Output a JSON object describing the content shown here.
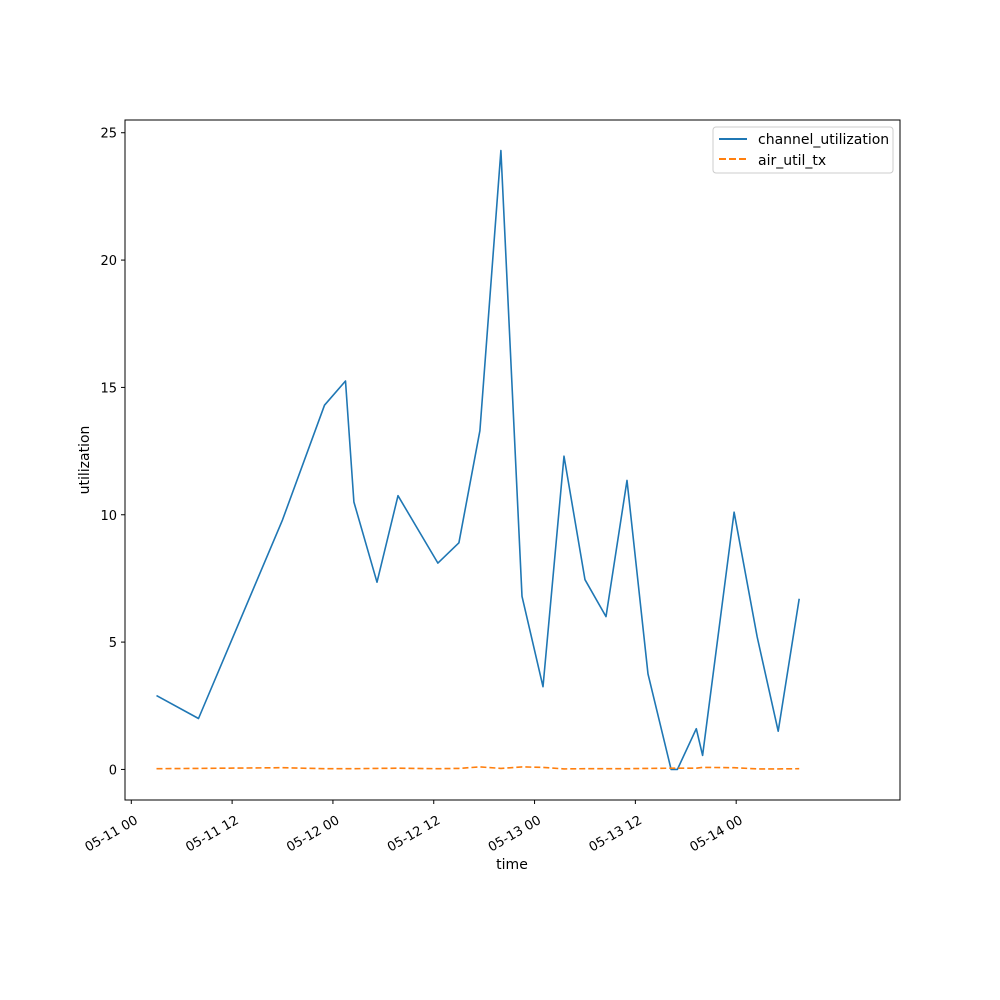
{
  "chart_data": {
    "type": "line",
    "xlabel": "time",
    "ylabel": "utilization",
    "x_ticks": [
      {
        "x": "2024-05-11T00:00",
        "label": "05-11 00"
      },
      {
        "x": "2024-05-11T12:00",
        "label": "05-11 12"
      },
      {
        "x": "2024-05-12T00:00",
        "label": "05-12 00"
      },
      {
        "x": "2024-05-12T12:00",
        "label": "05-12 12"
      },
      {
        "x": "2024-05-13T00:00",
        "label": "05-13 00"
      },
      {
        "x": "2024-05-13T12:00",
        "label": "05-13 12"
      },
      {
        "x": "2024-05-14T00:00",
        "label": "05-14 00"
      }
    ],
    "y_ticks": [
      0,
      5,
      10,
      15,
      20,
      25
    ],
    "xlim": [
      "2024-05-10T23:15",
      "2024-05-14T19:30"
    ],
    "ylim": [
      -1.2,
      25.5
    ],
    "grid": false,
    "legend_position": "top-right",
    "series": [
      {
        "name": "channel_utilization",
        "color": "#1f77b4",
        "dash": "solid",
        "points": [
          {
            "x": "2024-05-11T03:00",
            "y": 2.9
          },
          {
            "x": "2024-05-11T08:00",
            "y": 2.0
          },
          {
            "x": "2024-05-11T18:00",
            "y": 9.8
          },
          {
            "x": "2024-05-11T23:00",
            "y": 14.3
          },
          {
            "x": "2024-05-12T01:30",
            "y": 15.25
          },
          {
            "x": "2024-05-12T02:30",
            "y": 10.5
          },
          {
            "x": "2024-05-12T05:15",
            "y": 7.35
          },
          {
            "x": "2024-05-12T07:45",
            "y": 10.75
          },
          {
            "x": "2024-05-12T12:30",
            "y": 8.1
          },
          {
            "x": "2024-05-12T15:00",
            "y": 8.9
          },
          {
            "x": "2024-05-12T17:30",
            "y": 13.3
          },
          {
            "x": "2024-05-12T20:00",
            "y": 24.3
          },
          {
            "x": "2024-05-12T22:30",
            "y": 6.8
          },
          {
            "x": "2024-05-13T01:00",
            "y": 3.25
          },
          {
            "x": "2024-05-13T03:30",
            "y": 12.3
          },
          {
            "x": "2024-05-13T06:00",
            "y": 7.45
          },
          {
            "x": "2024-05-13T08:30",
            "y": 6.0
          },
          {
            "x": "2024-05-13T11:00",
            "y": 11.35
          },
          {
            "x": "2024-05-13T13:30",
            "y": 3.75
          },
          {
            "x": "2024-05-13T16:15",
            "y": 0.0
          },
          {
            "x": "2024-05-13T17:00",
            "y": 0.0
          },
          {
            "x": "2024-05-13T19:15",
            "y": 1.6
          },
          {
            "x": "2024-05-13T20:00",
            "y": 0.55
          },
          {
            "x": "2024-05-13T23:45",
            "y": 10.1
          },
          {
            "x": "2024-05-14T02:30",
            "y": 5.2
          },
          {
            "x": "2024-05-14T05:00",
            "y": 1.5
          },
          {
            "x": "2024-05-14T07:30",
            "y": 6.7
          }
        ]
      },
      {
        "name": "air_util_tx",
        "color": "#ff7f0e",
        "dash": "dashed",
        "points": [
          {
            "x": "2024-05-11T03:00",
            "y": 0.03
          },
          {
            "x": "2024-05-11T08:00",
            "y": 0.04
          },
          {
            "x": "2024-05-11T18:00",
            "y": 0.07
          },
          {
            "x": "2024-05-11T23:00",
            "y": 0.03
          },
          {
            "x": "2024-05-12T01:30",
            "y": 0.03
          },
          {
            "x": "2024-05-12T02:30",
            "y": 0.03
          },
          {
            "x": "2024-05-12T05:15",
            "y": 0.04
          },
          {
            "x": "2024-05-12T07:45",
            "y": 0.05
          },
          {
            "x": "2024-05-12T12:30",
            "y": 0.03
          },
          {
            "x": "2024-05-12T15:00",
            "y": 0.04
          },
          {
            "x": "2024-05-12T17:30",
            "y": 0.1
          },
          {
            "x": "2024-05-12T20:00",
            "y": 0.04
          },
          {
            "x": "2024-05-12T22:30",
            "y": 0.1
          },
          {
            "x": "2024-05-13T01:00",
            "y": 0.08
          },
          {
            "x": "2024-05-13T03:30",
            "y": 0.02
          },
          {
            "x": "2024-05-13T06:00",
            "y": 0.03
          },
          {
            "x": "2024-05-13T08:30",
            "y": 0.03
          },
          {
            "x": "2024-05-13T11:00",
            "y": 0.03
          },
          {
            "x": "2024-05-13T13:30",
            "y": 0.04
          },
          {
            "x": "2024-05-13T16:15",
            "y": 0.05
          },
          {
            "x": "2024-05-13T17:00",
            "y": 0.05
          },
          {
            "x": "2024-05-13T19:15",
            "y": 0.05
          },
          {
            "x": "2024-05-13T20:00",
            "y": 0.08
          },
          {
            "x": "2024-05-13T23:45",
            "y": 0.07
          },
          {
            "x": "2024-05-14T02:30",
            "y": 0.02
          },
          {
            "x": "2024-05-14T05:00",
            "y": 0.02
          },
          {
            "x": "2024-05-14T07:30",
            "y": 0.03
          }
        ]
      }
    ]
  }
}
